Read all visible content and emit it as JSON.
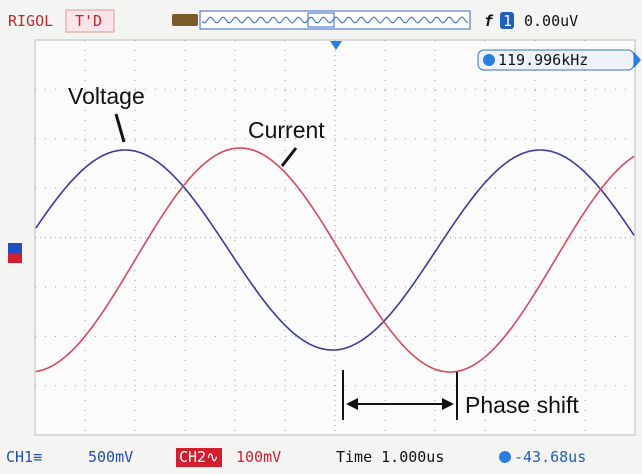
{
  "header": {
    "brand": "RIGOL",
    "mode": "T'D",
    "trigger_edge": "f",
    "trigger_channel": "1",
    "trigger_level": "0.00uV"
  },
  "frequency": "119.996kHz",
  "annotations": {
    "voltage": "Voltage",
    "current": "Current",
    "phase_shift": "Phase shift"
  },
  "footer": {
    "ch1_label": "CH1≡",
    "ch1_scale": "500mV",
    "ch2_label": "CH2∿",
    "ch2_scale": "100mV",
    "time_base": "Time 1.000us",
    "trigger_position": "-43.68us"
  }
}
